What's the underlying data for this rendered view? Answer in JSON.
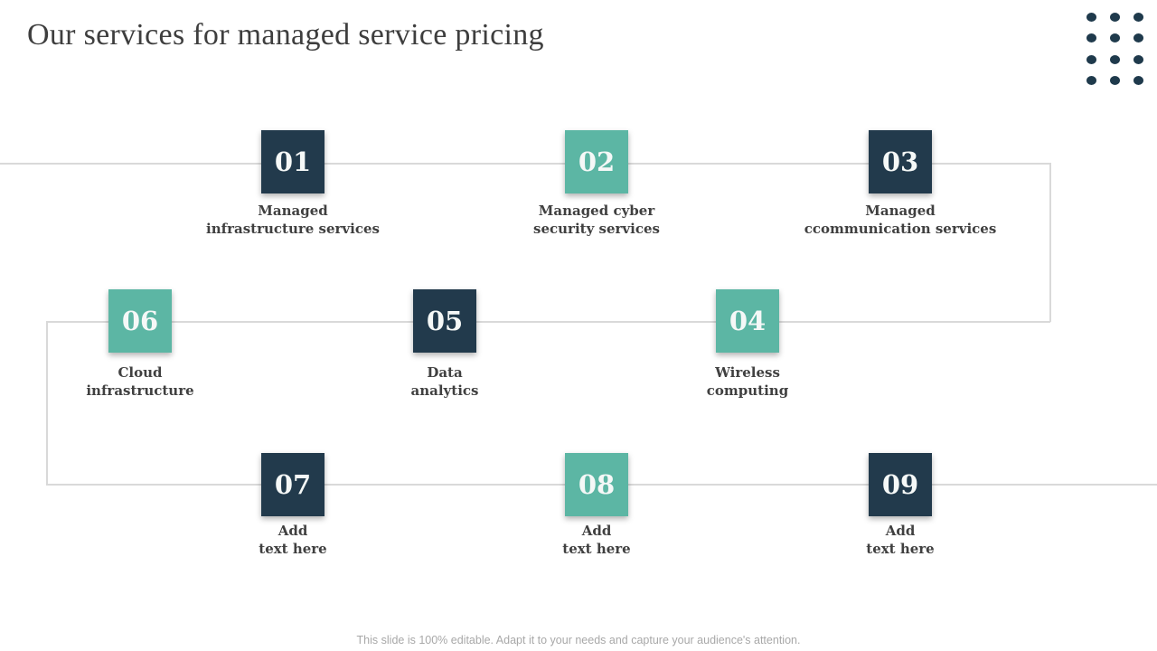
{
  "slide": {
    "title": "Our services for managed service pricing",
    "footer": "This slide is 100% editable. Adapt it to your needs and capture your audience's attention."
  },
  "colors": {
    "navy": "#223a4c",
    "teal": "#5cb6a4",
    "connector_line": "#d9d9d9",
    "label_text": "#404040",
    "title_text": "#3e3e3e",
    "footer_text": "#a8a8a8"
  },
  "steps": [
    {
      "number": "01",
      "color": "navy",
      "label_line1": "Managed",
      "label_line2": "infrastructure services"
    },
    {
      "number": "02",
      "color": "teal",
      "label_line1": "Managed cyber",
      "label_line2": "security services"
    },
    {
      "number": "03",
      "color": "navy",
      "label_line1": "Managed",
      "label_line2": "ccommunication services"
    },
    {
      "number": "04",
      "color": "teal",
      "label_line1": "Wireless",
      "label_line2": "computing"
    },
    {
      "number": "05",
      "color": "navy",
      "label_line1": "Data",
      "label_line2": "analytics"
    },
    {
      "number": "06",
      "color": "teal",
      "label_line1": "Cloud",
      "label_line2": "infrastructure"
    },
    {
      "number": "07",
      "color": "navy",
      "label_line1": "Add",
      "label_line2": "text here"
    },
    {
      "number": "08",
      "color": "teal",
      "label_line1": "Add",
      "label_line2": "text here"
    },
    {
      "number": "09",
      "color": "navy",
      "label_line1": "Add",
      "label_line2": "text here"
    }
  ]
}
